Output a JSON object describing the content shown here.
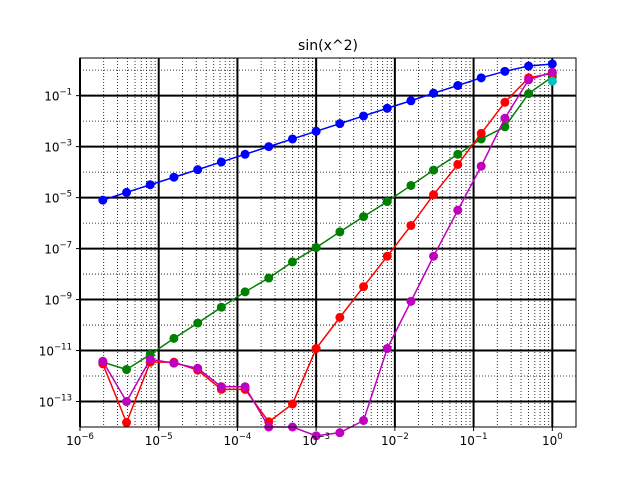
{
  "chart_data": {
    "type": "line",
    "title": "sin(x^2)",
    "xlabel": "",
    "ylabel": "",
    "x_scale": "log",
    "y_scale": "log",
    "xlim": [
      1e-06,
      2
    ],
    "ylim": [
      1e-14,
      3
    ],
    "grid": {
      "major": "solid black thick",
      "minor": "dotted black"
    },
    "x_ticks": [
      "10^-6",
      "10^-5",
      "10^-4",
      "10^-3",
      "10^-2",
      "10^-1",
      "10^0"
    ],
    "y_ticks": [
      "10^-13",
      "10^-11",
      "10^-9",
      "10^-7",
      "10^-5",
      "10^-3",
      "10^-1"
    ],
    "x": [
      1.95e-06,
      3.9e-06,
      7.8e-06,
      1.56e-05,
      3.13e-05,
      6.25e-05,
      0.000125,
      0.00025,
      0.0005,
      0.001,
      0.002,
      0.004,
      0.008,
      0.016,
      0.031,
      0.063,
      0.125,
      0.25,
      0.5,
      1.0
    ],
    "series": [
      {
        "color": "#0000ff",
        "values": [
          8e-06,
          1.6e-05,
          3.2e-05,
          6.3e-05,
          0.000125,
          0.00025,
          0.0005,
          0.001,
          0.002,
          0.004,
          0.008,
          0.016,
          0.032,
          0.063,
          0.125,
          0.25,
          0.5,
          0.9,
          1.45,
          1.75
        ]
      },
      {
        "color": "#008000",
        "values": [
          3.5e-12,
          1.8e-12,
          7e-12,
          3e-11,
          1.2e-10,
          5e-10,
          2e-09,
          7e-09,
          3e-08,
          1.1e-07,
          4.5e-07,
          1.8e-06,
          7e-06,
          3e-05,
          0.00012,
          0.0005,
          0.002,
          0.006,
          0.12,
          0.55
        ]
      },
      {
        "color": "#ff0000",
        "values": [
          3e-12,
          1.5e-14,
          3.5e-12,
          3.5e-12,
          1.7e-12,
          3e-13,
          3e-13,
          1.6e-14,
          8e-14,
          1.2e-11,
          2e-10,
          3.2e-09,
          5e-08,
          8e-07,
          1.3e-05,
          0.0002,
          0.0033,
          0.055,
          0.5,
          0.75
        ]
      },
      {
        "color": "#bf00bf",
        "values": [
          3.8e-12,
          1e-13,
          4.5e-12,
          3.2e-12,
          2e-12,
          3.8e-13,
          3.8e-13,
          1e-14,
          1e-14,
          4.5e-15,
          6e-15,
          1.8e-14,
          1.2e-11,
          8.5e-10,
          5e-08,
          3.2e-06,
          0.00017,
          0.013,
          0.42,
          0.83
        ]
      },
      {
        "color": "#00bfbf",
        "values": [
          null,
          null,
          null,
          null,
          null,
          null,
          null,
          null,
          null,
          null,
          null,
          null,
          null,
          null,
          null,
          null,
          null,
          null,
          null,
          0.37
        ]
      }
    ]
  }
}
